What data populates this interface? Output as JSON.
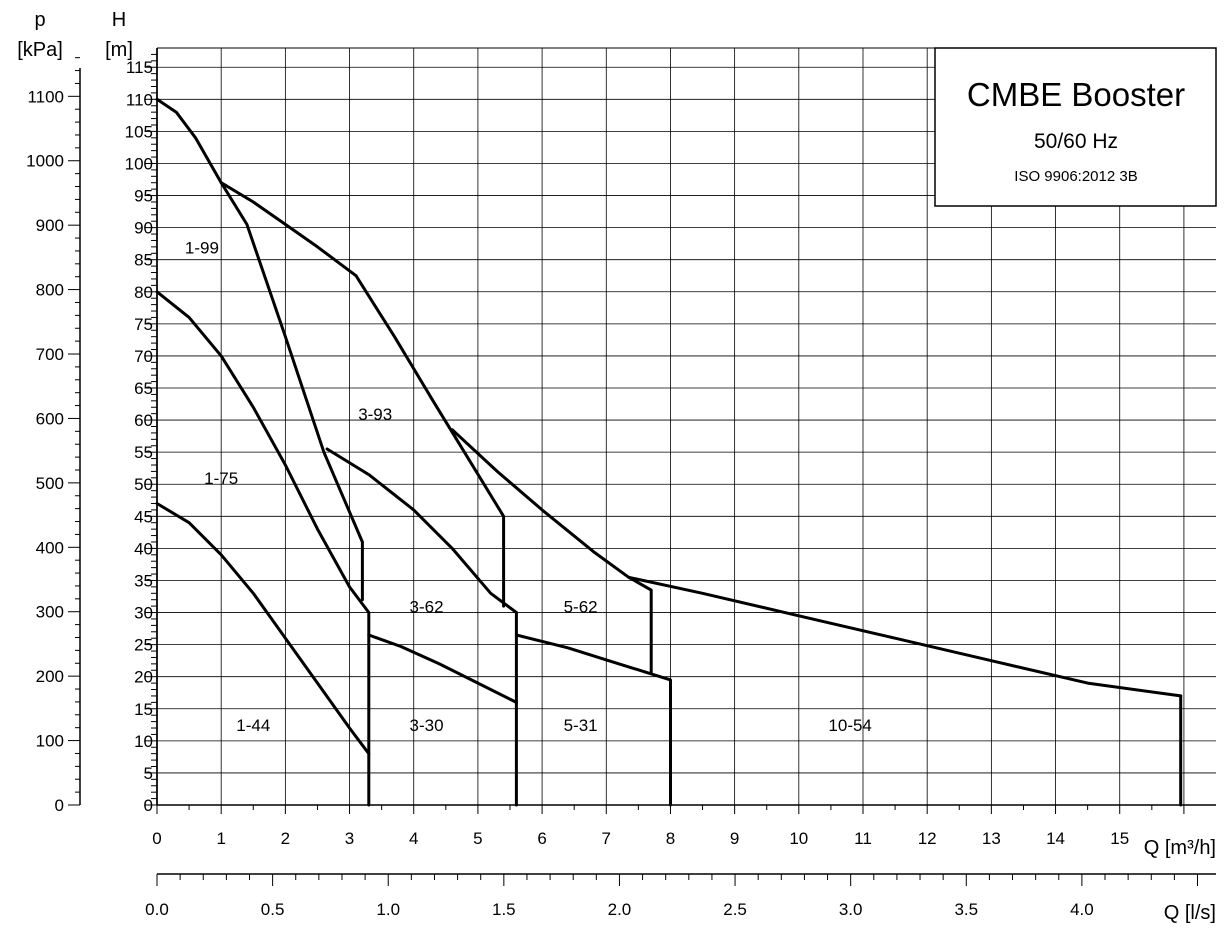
{
  "chart_data": {
    "type": "line",
    "title": "CMBE Booster",
    "subtitle": "50/60 Hz",
    "standard": "ISO 9906:2012 3B",
    "grid": true,
    "colors": {
      "line": "#000000",
      "grid": "#000000",
      "background": "#ffffff"
    },
    "axes": {
      "x": {
        "label": "Q [m³/h]",
        "range": [
          0,
          16.5
        ],
        "ticks": [
          "0",
          "1",
          "2",
          "3",
          "4",
          "5",
          "6",
          "7",
          "8",
          "9",
          "10",
          "11",
          "12",
          "13",
          "14",
          "15"
        ]
      },
      "x2": {
        "label": "Q [l/s]",
        "range": [
          0,
          4.58
        ],
        "ticks": [
          "0.0",
          "0.5",
          "1.0",
          "1.5",
          "2.0",
          "2.5",
          "3.0",
          "3.5",
          "4.0"
        ]
      },
      "y_left_unit": {
        "name": "p",
        "unit": "[kPa]"
      },
      "y_left": {
        "range": [
          0,
          1175
        ],
        "ticks": [
          "0",
          "100",
          "200",
          "300",
          "400",
          "500",
          "600",
          "700",
          "800",
          "900",
          "1000",
          "1100"
        ]
      },
      "y_right_unit": {
        "name": "H",
        "unit": "[m]"
      },
      "y": {
        "range": [
          0,
          118
        ],
        "ticks": [
          "0",
          "5",
          "10",
          "15",
          "20",
          "25",
          "30",
          "35",
          "40",
          "45",
          "50",
          "55",
          "60",
          "65",
          "70",
          "75",
          "80",
          "85",
          "90",
          "95",
          "100",
          "105",
          "110",
          "115"
        ]
      }
    },
    "series": [
      {
        "points": [
          [
            0,
            110
          ],
          [
            0.3,
            108
          ],
          [
            0.6,
            104
          ],
          [
            1.0,
            97
          ]
        ]
      },
      {
        "points": [
          [
            1.0,
            97
          ],
          [
            1.4,
            90.5
          ],
          [
            2.0,
            73
          ],
          [
            2.6,
            55
          ],
          [
            3.2,
            41
          ],
          [
            3.2,
            32
          ]
        ]
      },
      {
        "points": [
          [
            0,
            80
          ],
          [
            0.5,
            76
          ],
          [
            1.0,
            70
          ],
          [
            1.5,
            62
          ],
          [
            2.0,
            53
          ],
          [
            2.5,
            43
          ],
          [
            3.0,
            34
          ],
          [
            3.3,
            30
          ],
          [
            3.3,
            0
          ]
        ]
      },
      {
        "points": [
          [
            0,
            47
          ],
          [
            0.5,
            44
          ],
          [
            1.0,
            39
          ],
          [
            1.5,
            33
          ],
          [
            2.0,
            26
          ],
          [
            2.5,
            19
          ],
          [
            3.0,
            12
          ],
          [
            3.3,
            8
          ]
        ]
      },
      {
        "points": [
          [
            1.0,
            97
          ],
          [
            1.5,
            94
          ],
          [
            2.0,
            90.5
          ],
          [
            2.5,
            87
          ],
          [
            3.1,
            82.5
          ]
        ]
      },
      {
        "points": [
          [
            3.1,
            82.5
          ],
          [
            3.7,
            73
          ],
          [
            4.3,
            63
          ],
          [
            5.4,
            45
          ],
          [
            5.4,
            31
          ]
        ]
      },
      {
        "points": [
          [
            2.65,
            55.5
          ],
          [
            3.3,
            51.5
          ],
          [
            4.0,
            46
          ],
          [
            4.6,
            40
          ],
          [
            5.2,
            33
          ],
          [
            5.6,
            30
          ],
          [
            5.6,
            0
          ]
        ]
      },
      {
        "points": [
          [
            3.3,
            26.5
          ],
          [
            3.8,
            24.7
          ],
          [
            4.4,
            22
          ],
          [
            5.0,
            19
          ],
          [
            5.6,
            16
          ]
        ]
      },
      {
        "points": [
          [
            4.6,
            58.5
          ],
          [
            5.3,
            52
          ],
          [
            6.0,
            46
          ],
          [
            6.8,
            39.5
          ],
          [
            7.35,
            35.5
          ],
          [
            7.7,
            33.5
          ],
          [
            7.7,
            20.5
          ]
        ]
      },
      {
        "points": [
          [
            7.35,
            35.5
          ],
          [
            8.5,
            33
          ],
          [
            10.0,
            29.5
          ],
          [
            11.5,
            26
          ],
          [
            13.0,
            22.5
          ],
          [
            14.5,
            19
          ],
          [
            15.95,
            17
          ]
        ]
      },
      {
        "points": [
          [
            5.6,
            26.5
          ],
          [
            6.4,
            24.5
          ],
          [
            7.2,
            22
          ],
          [
            8.0,
            19.5
          ],
          [
            8.0,
            0
          ]
        ]
      },
      {
        "points": [
          [
            15.95,
            17
          ],
          [
            15.95,
            0
          ]
        ]
      }
    ],
    "annotations": [
      {
        "text": "1-99",
        "x": 0.7,
        "y": 86
      },
      {
        "text": "1-75",
        "x": 1.0,
        "y": 50
      },
      {
        "text": "1-44",
        "x": 1.5,
        "y": 11.5
      },
      {
        "text": "3-93",
        "x": 3.4,
        "y": 60
      },
      {
        "text": "3-62",
        "x": 4.2,
        "y": 30
      },
      {
        "text": "3-30",
        "x": 4.2,
        "y": 11.5
      },
      {
        "text": "5-62",
        "x": 6.6,
        "y": 30
      },
      {
        "text": "5-31",
        "x": 6.6,
        "y": 11.5
      },
      {
        "text": "10-54",
        "x": 10.8,
        "y": 11.5
      }
    ]
  }
}
